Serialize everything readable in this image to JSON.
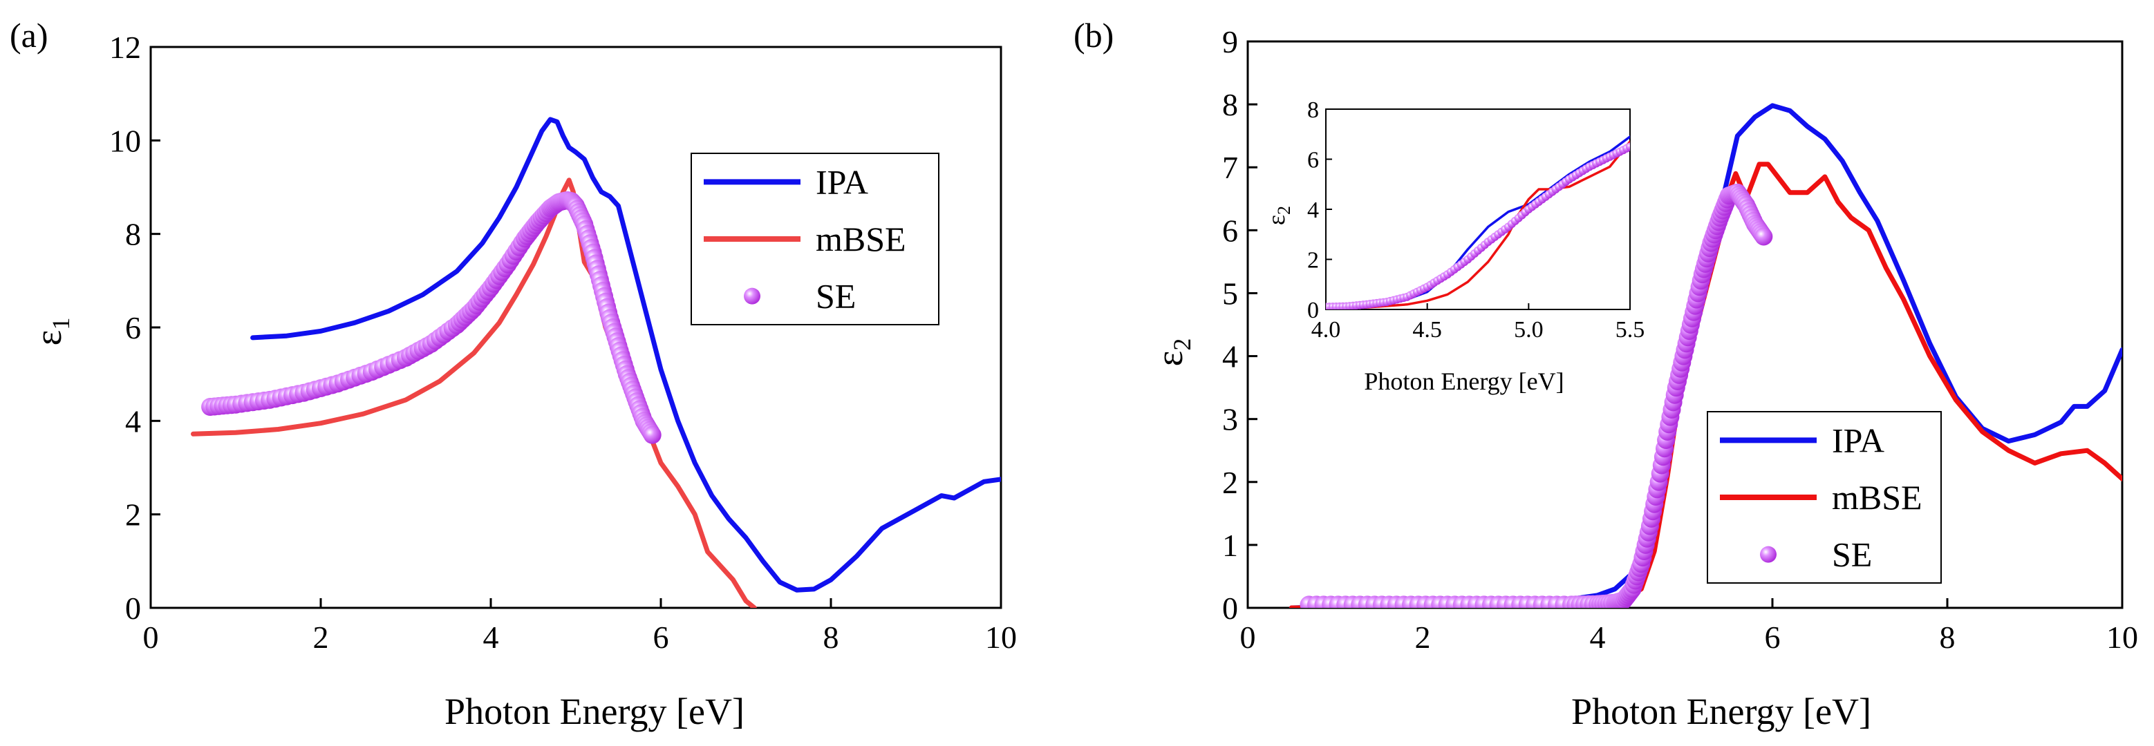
{
  "chart_data": [
    {
      "type": "line",
      "panel_label": "(a)",
      "xlabel": "Photon Energy [eV]",
      "ylabel_symbol": "ε",
      "ylabel_sub": "1",
      "xlim": [
        0,
        10
      ],
      "ylim": [
        0,
        12
      ],
      "xticks": [
        0,
        2,
        4,
        6,
        8,
        10
      ],
      "yticks": [
        0,
        2,
        4,
        6,
        8,
        10,
        12
      ],
      "legend_position": "right",
      "series": [
        {
          "name": "IPA",
          "style": "line",
          "color": "#1010ee",
          "x": [
            1.2,
            1.6,
            2.0,
            2.4,
            2.8,
            3.2,
            3.6,
            3.9,
            4.1,
            4.3,
            4.45,
            4.6,
            4.7,
            4.78,
            4.85,
            4.92,
            5.0,
            5.1,
            5.2,
            5.3,
            5.4,
            5.5,
            5.6,
            5.7,
            5.8,
            5.9,
            6.0,
            6.2,
            6.4,
            6.6,
            6.8,
            7.0,
            7.2,
            7.4,
            7.6,
            7.8,
            8.0,
            8.3,
            8.6,
            9.0,
            9.3,
            9.45,
            9.6,
            9.8,
            10.0
          ],
          "y": [
            5.78,
            5.82,
            5.92,
            6.1,
            6.35,
            6.7,
            7.2,
            7.8,
            8.35,
            9.0,
            9.6,
            10.2,
            10.45,
            10.4,
            10.1,
            9.85,
            9.75,
            9.6,
            9.2,
            8.9,
            8.8,
            8.6,
            7.9,
            7.2,
            6.5,
            5.8,
            5.1,
            4.0,
            3.1,
            2.4,
            1.9,
            1.5,
            1.0,
            0.55,
            0.38,
            0.4,
            0.6,
            1.1,
            1.7,
            2.1,
            2.4,
            2.35,
            2.5,
            2.7,
            2.75
          ]
        },
        {
          "name": "mBSE",
          "style": "line",
          "color": "#ee4444",
          "x": [
            0.5,
            1.0,
            1.5,
            2.0,
            2.5,
            3.0,
            3.4,
            3.8,
            4.1,
            4.3,
            4.5,
            4.65,
            4.75,
            4.85,
            4.92,
            4.97,
            5.03,
            5.1,
            5.2,
            5.35,
            5.5,
            5.58,
            5.65,
            5.72,
            5.85,
            6.0,
            6.2,
            6.4,
            6.55,
            6.7,
            6.85,
            7.0,
            7.1
          ],
          "y": [
            3.72,
            3.75,
            3.82,
            3.95,
            4.15,
            4.45,
            4.85,
            5.45,
            6.1,
            6.7,
            7.35,
            7.95,
            8.4,
            8.9,
            9.15,
            8.9,
            8.2,
            7.4,
            7.1,
            6.0,
            5.3,
            5.1,
            4.6,
            4.3,
            3.8,
            3.1,
            2.6,
            2.0,
            1.2,
            0.9,
            0.6,
            0.15,
            0.0
          ]
        },
        {
          "name": "SE",
          "style": "markers",
          "color": "#cc44ee",
          "x": [
            0.7,
            1.0,
            1.4,
            1.8,
            2.2,
            2.6,
            3.0,
            3.3,
            3.6,
            3.8,
            4.0,
            4.2,
            4.4,
            4.55,
            4.7,
            4.8,
            4.9,
            4.95,
            5.0,
            5.1,
            5.2,
            5.3,
            5.4,
            5.5,
            5.6,
            5.7,
            5.8,
            5.9
          ],
          "y": [
            4.3,
            4.35,
            4.45,
            4.6,
            4.8,
            5.05,
            5.35,
            5.65,
            6.05,
            6.4,
            6.85,
            7.35,
            7.9,
            8.25,
            8.55,
            8.68,
            8.72,
            8.7,
            8.6,
            8.2,
            7.6,
            6.9,
            6.2,
            5.6,
            5.0,
            4.5,
            4.0,
            3.7
          ]
        }
      ]
    },
    {
      "type": "line",
      "panel_label": "(b)",
      "xlabel": "Photon Energy [eV]",
      "ylabel_symbol": "ε",
      "ylabel_sub": "2",
      "xlim": [
        0,
        10
      ],
      "ylim": [
        0,
        9
      ],
      "xticks": [
        0,
        2,
        4,
        6,
        8,
        10
      ],
      "yticks": [
        0,
        1,
        2,
        3,
        4,
        5,
        6,
        7,
        8,
        9
      ],
      "legend_position": "bottom-right",
      "series": [
        {
          "name": "IPA",
          "style": "line",
          "color": "#1010ee",
          "x": [
            0.5,
            1.0,
            2.0,
            3.0,
            3.5,
            4.0,
            4.2,
            4.4,
            4.55,
            4.7,
            4.85,
            5.0,
            5.2,
            5.4,
            5.6,
            5.8,
            6.0,
            6.2,
            6.4,
            6.6,
            6.8,
            7.0,
            7.2,
            7.5,
            7.8,
            8.1,
            8.4,
            8.7,
            9.0,
            9.3,
            9.45,
            9.6,
            9.8,
            10.0
          ],
          "y": [
            0.0,
            0.02,
            0.05,
            0.08,
            0.1,
            0.2,
            0.3,
            0.55,
            1.2,
            2.3,
            3.6,
            4.3,
            5.2,
            6.3,
            7.5,
            7.8,
            7.98,
            7.9,
            7.65,
            7.45,
            7.1,
            6.6,
            6.15,
            5.2,
            4.2,
            3.35,
            2.85,
            2.65,
            2.75,
            2.95,
            3.2,
            3.2,
            3.45,
            4.1
          ]
        },
        {
          "name": "mBSE",
          "style": "line",
          "color": "#ee1111",
          "x": [
            0.5,
            1.0,
            2.0,
            3.0,
            4.0,
            4.3,
            4.5,
            4.65,
            4.8,
            4.95,
            5.1,
            5.25,
            5.4,
            5.5,
            5.58,
            5.7,
            5.85,
            5.95,
            6.2,
            6.4,
            6.6,
            6.75,
            6.9,
            7.1,
            7.3,
            7.5,
            7.8,
            8.1,
            8.4,
            8.7,
            9.0,
            9.3,
            9.6,
            9.8,
            10.0
          ],
          "y": [
            0.0,
            0.0,
            0.02,
            0.04,
            0.08,
            0.12,
            0.3,
            0.9,
            2.1,
            3.5,
            4.3,
            5.1,
            5.9,
            6.6,
            6.9,
            6.5,
            7.05,
            7.05,
            6.6,
            6.6,
            6.85,
            6.45,
            6.2,
            6.0,
            5.4,
            4.9,
            4.0,
            3.3,
            2.8,
            2.5,
            2.3,
            2.45,
            2.5,
            2.3,
            2.05
          ]
        },
        {
          "name": "SE",
          "style": "markers",
          "color": "#cc44ee",
          "x": [
            0.7,
            1.2,
            1.7,
            2.2,
            2.7,
            3.2,
            3.7,
            4.0,
            4.2,
            4.3,
            4.4,
            4.5,
            4.6,
            4.7,
            4.8,
            4.9,
            5.0,
            5.1,
            5.2,
            5.3,
            5.4,
            5.5,
            5.6,
            5.7,
            5.8,
            5.9
          ],
          "y": [
            0.05,
            0.05,
            0.05,
            0.05,
            0.05,
            0.05,
            0.05,
            0.06,
            0.08,
            0.12,
            0.3,
            0.7,
            1.3,
            2.0,
            2.8,
            3.5,
            4.1,
            4.7,
            5.3,
            5.8,
            6.2,
            6.55,
            6.6,
            6.4,
            6.1,
            5.9
          ]
        }
      ],
      "inset": {
        "xlim": [
          4.0,
          5.5
        ],
        "ylim": [
          0,
          8
        ],
        "xticks": [
          "4.0",
          "4.5",
          "5.0",
          "5.5"
        ],
        "yticks": [
          0,
          2,
          4,
          6,
          8
        ],
        "xlabel": "Photon Energy [eV]",
        "ylabel_symbol": "ε",
        "ylabel_sub": "2",
        "series": [
          {
            "name": "IPA",
            "style": "line",
            "color": "#1010ee",
            "x": [
              4.0,
              4.2,
              4.4,
              4.5,
              4.6,
              4.7,
              4.8,
              4.9,
              5.0,
              5.1,
              5.2,
              5.3,
              5.4,
              5.5
            ],
            "y": [
              0.1,
              0.2,
              0.4,
              0.7,
              1.4,
              2.4,
              3.3,
              3.9,
              4.2,
              4.8,
              5.4,
              5.9,
              6.3,
              6.9
            ]
          },
          {
            "name": "mBSE",
            "style": "line",
            "color": "#ee1111",
            "x": [
              4.0,
              4.2,
              4.4,
              4.5,
              4.6,
              4.7,
              4.8,
              4.9,
              4.95,
              5.0,
              5.05,
              5.1,
              5.2,
              5.3,
              5.4,
              5.5
            ],
            "y": [
              0.05,
              0.08,
              0.2,
              0.35,
              0.6,
              1.1,
              1.9,
              3.0,
              3.8,
              4.4,
              4.8,
              4.8,
              4.9,
              5.3,
              5.7,
              6.7
            ]
          },
          {
            "name": "SE",
            "style": "markers",
            "color": "#cc44ee",
            "x": [
              4.0,
              4.1,
              4.2,
              4.3,
              4.4,
              4.5,
              4.6,
              4.7,
              4.8,
              4.9,
              5.0,
              5.1,
              5.2,
              5.3,
              5.4,
              5.5
            ],
            "y": [
              0.1,
              0.12,
              0.2,
              0.3,
              0.5,
              0.9,
              1.4,
              2.0,
              2.7,
              3.3,
              4.0,
              4.6,
              5.2,
              5.7,
              6.1,
              6.5
            ]
          }
        ]
      }
    }
  ]
}
